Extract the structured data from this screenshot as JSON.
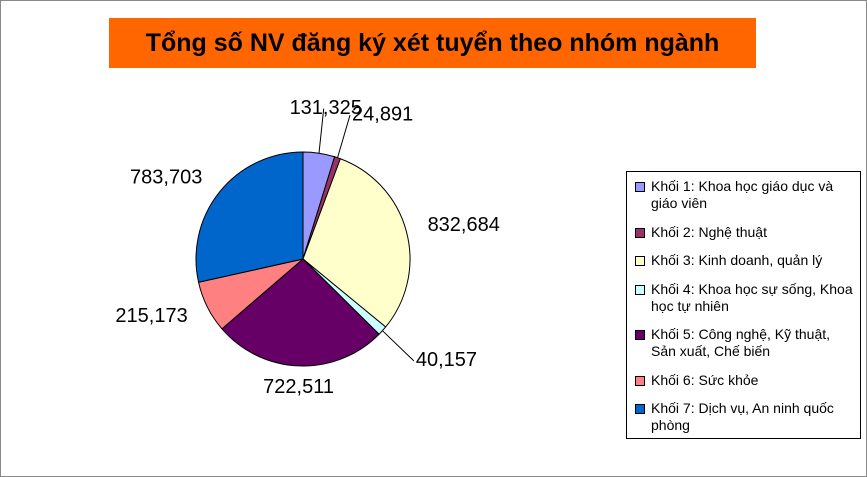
{
  "chart_data": {
    "type": "pie",
    "title": "Tổng số NV đăng ký xét tuyển theo nhóm ngành",
    "categories": [
      "Khối 1: Khoa học giáo dục và giáo viên",
      "Khối 2: Nghệ thuật",
      "Khối 3: Kinh doanh, quản lý",
      "Khối 4: Khoa học sự sống, Khoa học tự nhiên",
      "Khối 5: Công nghệ, Kỹ thuật, Sản xuất, Chế biến",
      "Khối 6: Sức khỏe",
      "Khối 7: Dịch vụ, An ninh quốc phòng"
    ],
    "values": [
      131325,
      24891,
      832684,
      40157,
      722511,
      215173,
      783703
    ],
    "value_labels": [
      "131,325",
      "24,891",
      "832,684",
      "40,157",
      "722,511",
      "215,173",
      "783,703"
    ],
    "colors": [
      "#9999ff",
      "#993366",
      "#ffffcc",
      "#ccffff",
      "#660066",
      "#ff8080",
      "#0066cc"
    ],
    "legend": "right"
  }
}
